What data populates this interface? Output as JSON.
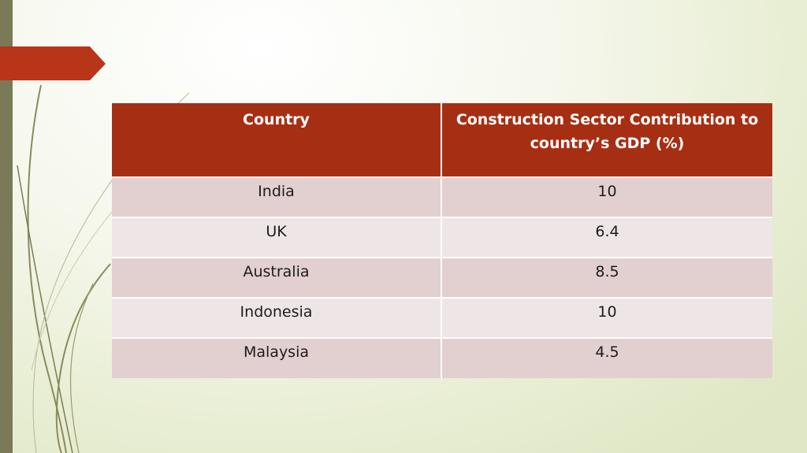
{
  "table": {
    "headers": [
      "Country",
      "Construction Sector Contribution to country’s GDP (%)"
    ],
    "rows": [
      [
        "India",
        "10"
      ],
      [
        "UK",
        "6.4"
      ],
      [
        "Australia",
        "8.5"
      ],
      [
        "Indonesia",
        "10"
      ],
      [
        "Malaysia",
        "4.5"
      ]
    ]
  },
  "colors": {
    "header_bg": "#a62f13",
    "row_odd": "#e2cfcf",
    "row_even": "#eee6e6",
    "left_bar": "#7a7a58",
    "banner": "#b8351a"
  }
}
